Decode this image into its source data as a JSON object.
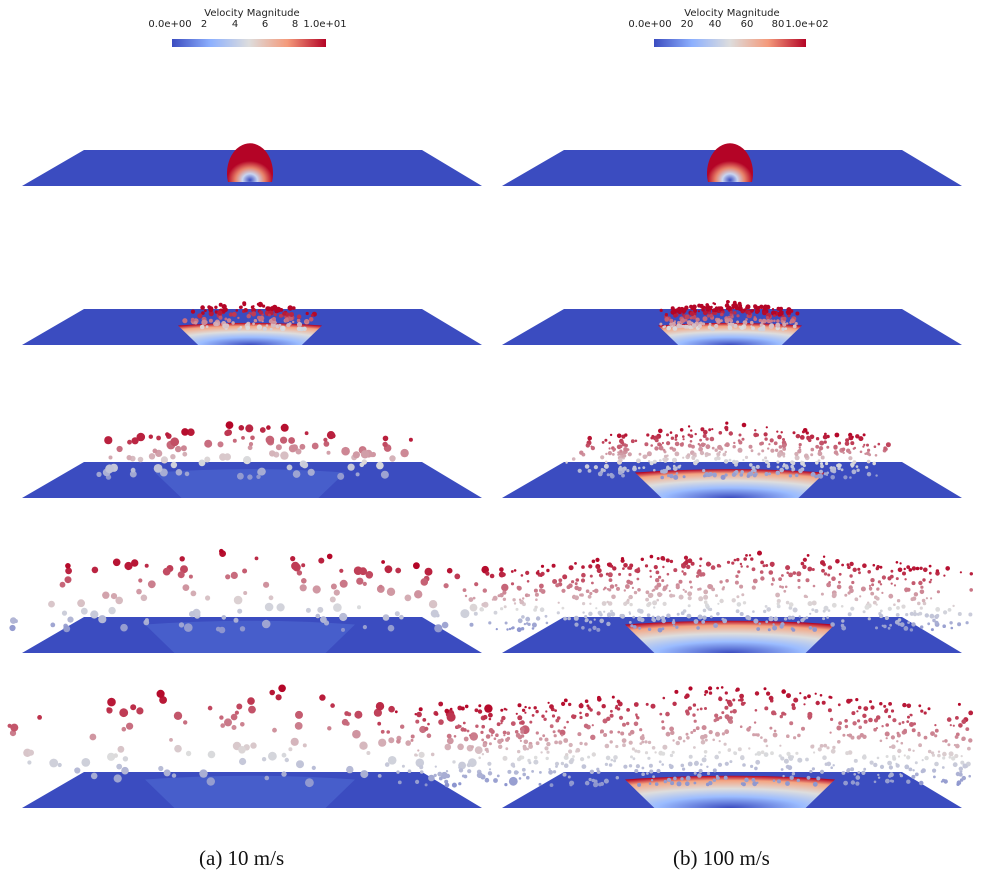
{
  "colorbars": [
    {
      "title": "Velocity Magnitude",
      "ticks": [
        "0.0e+00",
        "2",
        "4",
        "6",
        "8",
        "1.0e+01"
      ]
    },
    {
      "title": "Velocity Magnitude",
      "ticks": [
        "0.0e+00",
        "20",
        "40",
        "60",
        "80",
        "1.0e+02"
      ]
    }
  ],
  "captions": {
    "left": "(a) 10 m/s",
    "right": "(b) 100 m/s"
  },
  "colors": {
    "plate": "#3b4cc0",
    "low": "#3b4cc0",
    "mid": "#dddddd",
    "high": "#b40426"
  }
}
